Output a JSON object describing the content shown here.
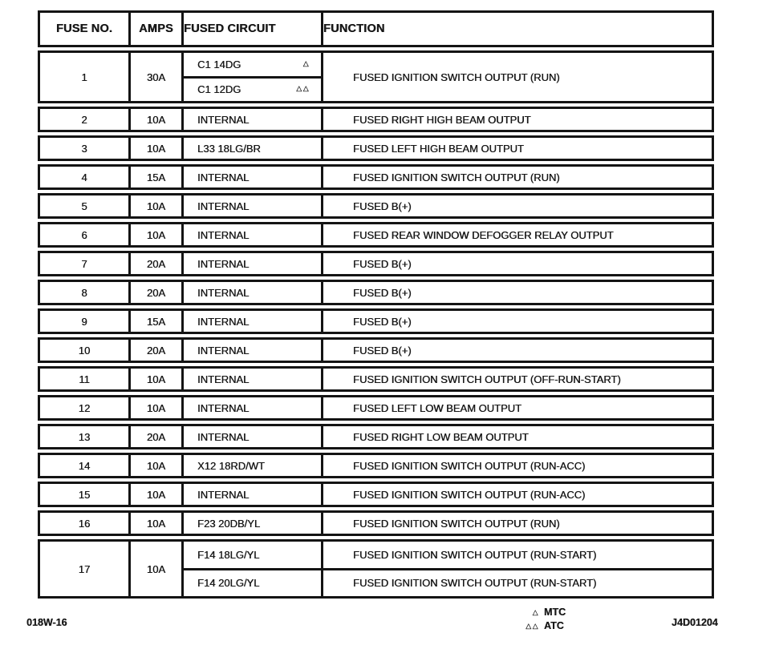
{
  "table": {
    "headers": [
      "FUSE NO.",
      "AMPS",
      "FUSED CIRCUIT",
      "FUNCTION"
    ],
    "rows": [
      {
        "fuse": "1",
        "amps": "30A",
        "circuits": [
          {
            "label": "C1 14DG",
            "mark": "△"
          },
          {
            "label": "C1 12DG",
            "mark": "△△"
          }
        ],
        "functions": [
          "FUSED IGNITION SWITCH OUTPUT (RUN)"
        ]
      },
      {
        "fuse": "2",
        "amps": "10A",
        "circuits": [
          {
            "label": "INTERNAL",
            "mark": ""
          }
        ],
        "functions": [
          "FUSED RIGHT HIGH BEAM OUTPUT"
        ]
      },
      {
        "fuse": "3",
        "amps": "10A",
        "circuits": [
          {
            "label": "L33 18LG/BR",
            "mark": ""
          }
        ],
        "functions": [
          "FUSED LEFT HIGH BEAM OUTPUT"
        ]
      },
      {
        "fuse": "4",
        "amps": "15A",
        "circuits": [
          {
            "label": "INTERNAL",
            "mark": ""
          }
        ],
        "functions": [
          "FUSED IGNITION SWITCH OUTPUT (RUN)"
        ]
      },
      {
        "fuse": "5",
        "amps": "10A",
        "circuits": [
          {
            "label": "INTERNAL",
            "mark": ""
          }
        ],
        "functions": [
          "FUSED B(+)"
        ]
      },
      {
        "fuse": "6",
        "amps": "10A",
        "circuits": [
          {
            "label": "INTERNAL",
            "mark": ""
          }
        ],
        "functions": [
          "FUSED REAR WINDOW DEFOGGER RELAY OUTPUT"
        ]
      },
      {
        "fuse": "7",
        "amps": "20A",
        "circuits": [
          {
            "label": "INTERNAL",
            "mark": ""
          }
        ],
        "functions": [
          "FUSED B(+)"
        ]
      },
      {
        "fuse": "8",
        "amps": "20A",
        "circuits": [
          {
            "label": "INTERNAL",
            "mark": ""
          }
        ],
        "functions": [
          "FUSED B(+)"
        ]
      },
      {
        "fuse": "9",
        "amps": "15A",
        "circuits": [
          {
            "label": "INTERNAL",
            "mark": ""
          }
        ],
        "functions": [
          "FUSED B(+)"
        ]
      },
      {
        "fuse": "10",
        "amps": "20A",
        "circuits": [
          {
            "label": "INTERNAL",
            "mark": ""
          }
        ],
        "functions": [
          "FUSED B(+)"
        ]
      },
      {
        "fuse": "11",
        "amps": "10A",
        "circuits": [
          {
            "label": "INTERNAL",
            "mark": ""
          }
        ],
        "functions": [
          "FUSED IGNITION SWITCH OUTPUT (OFF-RUN-START)"
        ]
      },
      {
        "fuse": "12",
        "amps": "10A",
        "circuits": [
          {
            "label": "INTERNAL",
            "mark": ""
          }
        ],
        "functions": [
          "FUSED LEFT LOW BEAM OUTPUT"
        ]
      },
      {
        "fuse": "13",
        "amps": "20A",
        "circuits": [
          {
            "label": "INTERNAL",
            "mark": ""
          }
        ],
        "functions": [
          "FUSED RIGHT LOW BEAM OUTPUT"
        ]
      },
      {
        "fuse": "14",
        "amps": "10A",
        "circuits": [
          {
            "label": "X12 18RD/WT",
            "mark": ""
          }
        ],
        "functions": [
          "FUSED IGNITION SWITCH OUTPUT (RUN-ACC)"
        ]
      },
      {
        "fuse": "15",
        "amps": "10A",
        "circuits": [
          {
            "label": "INTERNAL",
            "mark": ""
          }
        ],
        "functions": [
          "FUSED IGNITION SWITCH OUTPUT (RUN-ACC)"
        ]
      },
      {
        "fuse": "16",
        "amps": "10A",
        "circuits": [
          {
            "label": "F23 20DB/YL",
            "mark": ""
          }
        ],
        "functions": [
          "FUSED IGNITION SWITCH OUTPUT (RUN)"
        ]
      },
      {
        "fuse": "17",
        "amps": "10A",
        "circuits": [
          {
            "label": "F14 18LG/YL",
            "mark": ""
          },
          {
            "label": "F14 20LG/YL",
            "mark": ""
          }
        ],
        "functions": [
          "FUSED IGNITION SWITCH OUTPUT (RUN-START)",
          "FUSED IGNITION SWITCH OUTPUT (RUN-START)"
        ]
      }
    ]
  },
  "footer": {
    "left_code": "018W-16",
    "legend": [
      {
        "symbol": "△",
        "label": "MTC"
      },
      {
        "symbol": "△△",
        "label": "ATC"
      }
    ],
    "right_code": "J4D01204"
  },
  "colors": {
    "ink": "#141414",
    "paper": "#ffffff"
  }
}
